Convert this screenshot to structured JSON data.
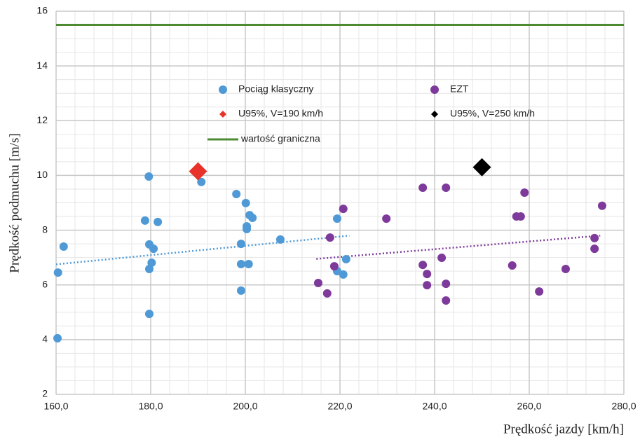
{
  "chart_data": {
    "type": "scatter",
    "xlabel": "Prędkość jazdy [km/h]",
    "ylabel": "Prędkość podmuchu [m/s]",
    "xlim": [
      160,
      280
    ],
    "ylim": [
      2,
      16
    ],
    "xticks": [
      {
        "value": 160,
        "label": "160,0"
      },
      {
        "value": 180,
        "label": "180,0"
      },
      {
        "value": 200,
        "label": "200,0"
      },
      {
        "value": 220,
        "label": "220,0"
      },
      {
        "value": 240,
        "label": "240,0"
      },
      {
        "value": 260,
        "label": "260,0"
      },
      {
        "value": 280,
        "label": "280,0"
      }
    ],
    "yticks": [
      2,
      4,
      6,
      8,
      10,
      12,
      14,
      16
    ],
    "grid": true,
    "minor_grid": {
      "x": 4,
      "y": 0.5
    },
    "series": [
      {
        "name": "Pociąg klasyczny",
        "color": "#4f9ad6",
        "marker": "circle",
        "x": [
          160.3,
          160.4,
          161.6,
          178.8,
          179.6,
          179.7,
          180.6,
          179.7,
          180.2,
          179.7,
          181.5,
          190.7,
          198.1,
          200.1,
          200.9,
          201.5,
          200.3,
          200.3,
          199.1,
          199.1,
          200.7,
          199.1,
          207.4,
          219.4,
          221.3,
          219.4,
          220.7
        ],
        "values": [
          4.05,
          6.45,
          7.4,
          8.35,
          9.96,
          7.48,
          7.32,
          6.58,
          6.81,
          4.94,
          8.3,
          9.76,
          9.32,
          8.99,
          8.55,
          8.45,
          8.14,
          8.04,
          7.5,
          6.76,
          6.76,
          5.79,
          7.66,
          8.42,
          6.94,
          6.5,
          6.38
        ]
      },
      {
        "name": "EZT",
        "color": "#7d3a9a",
        "marker": "circle",
        "x": [
          215.4,
          217.3,
          217.9,
          218.8,
          220.7,
          229.8,
          237.5,
          242.4,
          237.5,
          238.4,
          238.4,
          241.5,
          242.4,
          242.4,
          256.4,
          257.3,
          258.2,
          259.0,
          262.1,
          267.7,
          273.8,
          273.8,
          275.4
        ],
        "values": [
          6.07,
          5.69,
          7.73,
          6.68,
          8.78,
          8.42,
          9.55,
          9.55,
          6.73,
          6.4,
          5.99,
          6.99,
          6.04,
          5.43,
          6.71,
          8.5,
          8.5,
          9.37,
          5.76,
          6.58,
          7.71,
          7.32,
          8.89
        ]
      },
      {
        "name": "U95%, V=190  km/h",
        "color": "#e8322a",
        "marker": "diamond",
        "x": [
          190
        ],
        "values": [
          10.15
        ]
      },
      {
        "name": "U95%, V=250  km/h",
        "color": "#000000",
        "marker": "diamond",
        "x": [
          250
        ],
        "values": [
          10.3
        ]
      },
      {
        "name": "wartość graniczna",
        "color": "#4e8a32",
        "marker": "hline",
        "x": [
          160,
          280
        ],
        "values": [
          15.5,
          15.5
        ]
      }
    ],
    "trendlines": [
      {
        "color": "#4f9ad6",
        "x": [
          160,
          222
        ],
        "values": [
          6.75,
          7.8
        ]
      },
      {
        "color": "#7d3a9a",
        "x": [
          215,
          275
        ],
        "values": [
          6.95,
          7.8
        ]
      }
    ]
  }
}
